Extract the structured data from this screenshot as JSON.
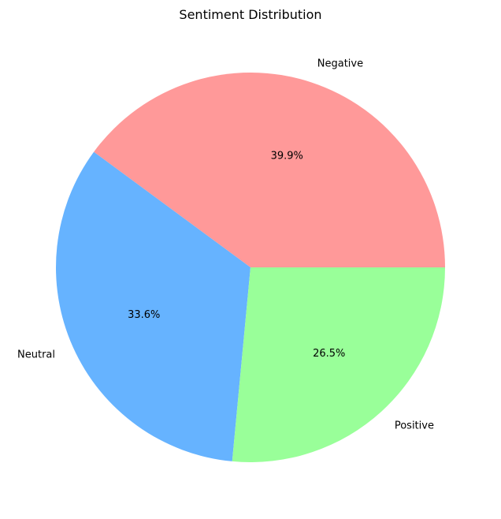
{
  "chart_data": {
    "type": "pie",
    "title": "Sentiment Distribution",
    "categories": [
      "Negative",
      "Neutral",
      "Positive"
    ],
    "values": [
      39.9,
      33.6,
      26.5
    ],
    "percent_labels": [
      "39.9%",
      "33.6%",
      "26.5%"
    ],
    "colors": [
      "#ff9999",
      "#66b3ff",
      "#99ff99"
    ],
    "start_angle_deg": 0,
    "direction": "counterclockwise",
    "legend": "none"
  }
}
